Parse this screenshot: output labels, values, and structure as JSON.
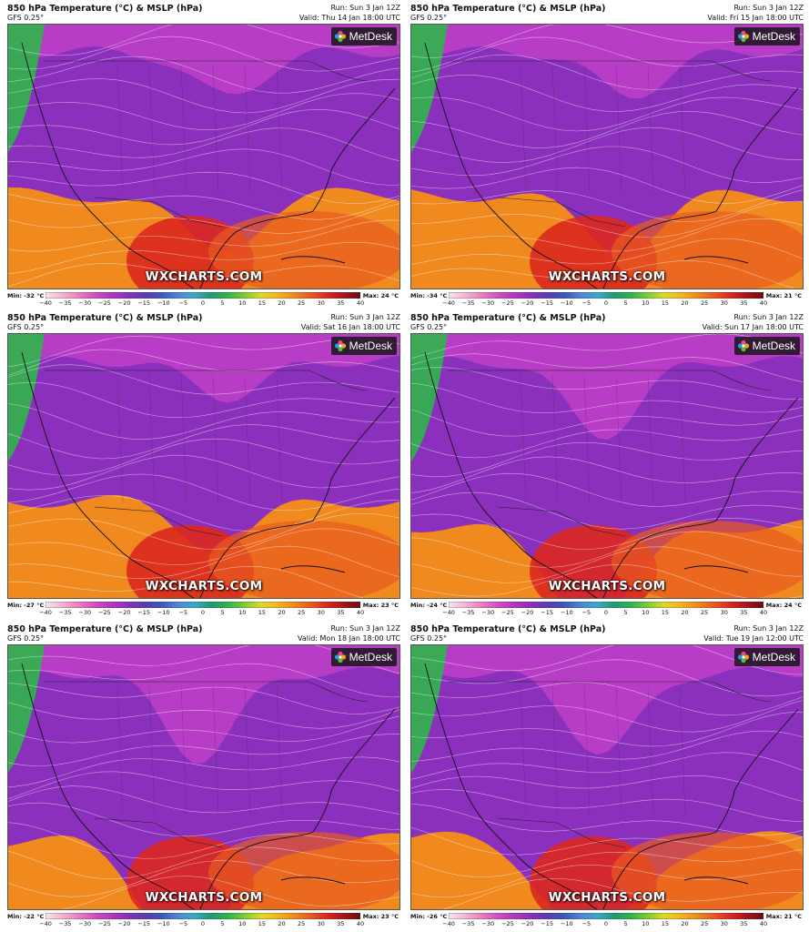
{
  "colorbar": {
    "ticks": [
      "−40",
      "−35",
      "−30",
      "−25",
      "−20",
      "−15",
      "−10",
      "−5",
      "0",
      "5",
      "10",
      "15",
      "20",
      "25",
      "30",
      "35",
      "40"
    ]
  },
  "brand": {
    "metdesk": "MetDesk",
    "watermark": "WXCHARTS.COM"
  },
  "panels": [
    {
      "title": "850 hPa Temperature (°C) & MSLP (hPa)",
      "model": "GFS 0.25°",
      "run": "Run: Sun 3 Jan 12Z",
      "valid": "Valid: Thu 14 Jan 18:00 UTC",
      "min": "Min: -32 °C",
      "max": "Max: 24 °C",
      "cold_front": "mid",
      "cold_extent": 0.55
    },
    {
      "title": "850 hPa Temperature (°C) & MSLP (hPa)",
      "model": "GFS 0.25°",
      "run": "Run: Sun 3 Jan 12Z",
      "valid": "Valid: Fri 15 Jan 18:00 UTC",
      "min": "Min: -34 °C",
      "max": "Max: 21 °C",
      "cold_front": "mid",
      "cold_extent": 0.55
    },
    {
      "title": "850 hPa Temperature (°C) & MSLP (hPa)",
      "model": "GFS 0.25°",
      "run": "Run: Sun 3 Jan 12Z",
      "valid": "Valid: Sat 16 Jan 18:00 UTC",
      "min": "Min: -27 °C",
      "max": "Max: 23 °C",
      "cold_front": "mid",
      "cold_extent": 0.45
    },
    {
      "title": "850 hPa Temperature (°C) & MSLP (hPa)",
      "model": "GFS 0.25°",
      "run": "Run: Sun 3 Jan 12Z",
      "valid": "Valid: Sun 17 Jan 18:00 UTC",
      "min": "Min: -24 °C",
      "max": "Max: 24 °C",
      "cold_front": "deep",
      "cold_extent": 0.6
    },
    {
      "title": "850 hPa Temperature (°C) & MSLP (hPa)",
      "model": "GFS 0.25°",
      "run": "Run: Sun 3 Jan 12Z",
      "valid": "Valid: Mon 18 Jan 18:00 UTC",
      "min": "Min: -22 °C",
      "max": "Max: 23 °C",
      "cold_front": "deep",
      "cold_extent": 0.7
    },
    {
      "title": "850 hPa Temperature (°C) & MSLP (hPa)",
      "model": "GFS 0.25°",
      "run": "Run: Sun 3 Jan 12Z",
      "valid": "Valid: Tue 19 Jan 12:00 UTC",
      "min": "Min: -26 °C",
      "max": "Max: 21 °C",
      "cold_front": "deep",
      "cold_extent": 0.65
    }
  ]
}
